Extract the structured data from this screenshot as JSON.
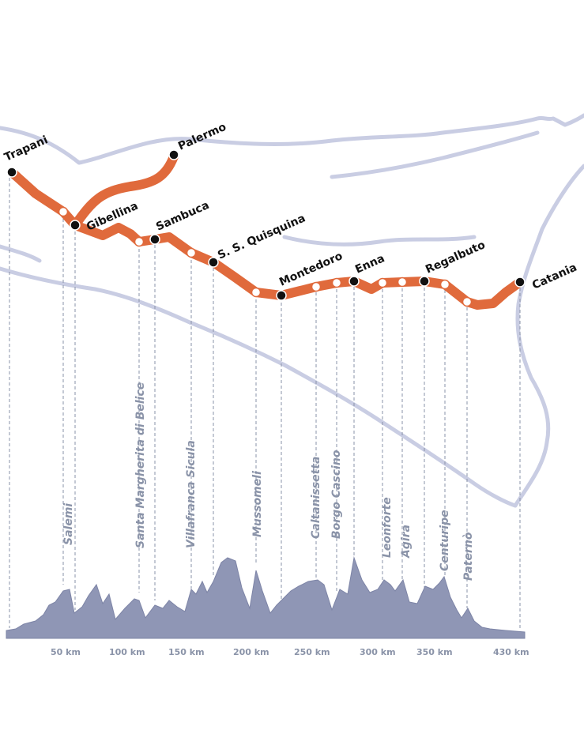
{
  "colors": {
    "route": "#e06a3c",
    "coast": "#c9cde3",
    "profile": "#8f96b5",
    "profile_stroke": "#7d84a6",
    "label_italic": "#8a93a8"
  },
  "major_stops": [
    {
      "name": "Trapani"
    },
    {
      "name": "Palermo"
    },
    {
      "name": "Gibellina"
    },
    {
      "name": "Sambuca"
    },
    {
      "name": "S. S. Quisquina"
    },
    {
      "name": "Montedoro"
    },
    {
      "name": "Enna"
    },
    {
      "name": "Regalbuto"
    },
    {
      "name": "Catania"
    }
  ],
  "minor_stops": [
    {
      "name": "Salemi"
    },
    {
      "name": "Santa Margherita di Belice"
    },
    {
      "name": "Villafranca Sicula"
    },
    {
      "name": "Mussomeli"
    },
    {
      "name": "Caltanissetta"
    },
    {
      "name": "Borgo Cascino"
    },
    {
      "name": "Leonforte"
    },
    {
      "name": "Agira"
    },
    {
      "name": "Centuripe"
    },
    {
      "name": "Paternò"
    }
  ],
  "distance_axis": [
    "50 km",
    "100 km",
    "150 km",
    "200 km",
    "250 km",
    "300 km",
    "350 km",
    "430 km"
  ]
}
